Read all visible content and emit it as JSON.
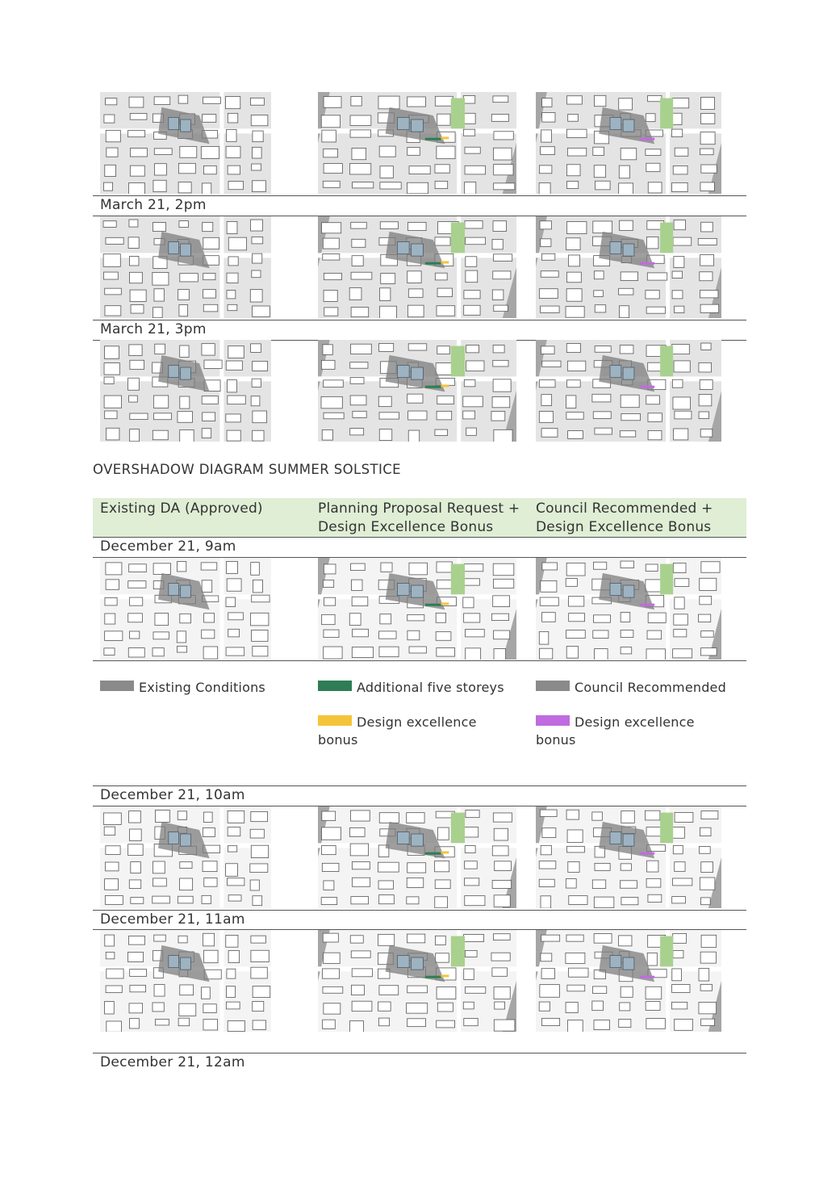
{
  "section_title": "OVERSHADOW DIAGRAM SUMMER SOLSTICE",
  "columns": [
    {
      "header": "Existing DA (Approved)"
    },
    {
      "header": "Planning Proposal Request + Design Excellence Bonus"
    },
    {
      "header": "Council Recommended + Design Excellence Bonus"
    }
  ],
  "time_labels": {
    "mar_2pm": "March 21, 2pm",
    "mar_3pm": "March 21, 3pm",
    "dec_9am": "December 21, 9am",
    "dec_10am": "December 21, 10am",
    "dec_11am": "December 21, 11am",
    "dec_12am": "December 21, 12am"
  },
  "legend": {
    "existing": {
      "label": "Existing Conditions",
      "color": "#8a8a8a"
    },
    "additional": {
      "label": "Additional five storeys",
      "color": "#2e7d55"
    },
    "bonus_yellow": {
      "label": "Design excellence bonus",
      "color": "#f5c43a"
    },
    "council": {
      "label": "Council Recommended",
      "color": "#8a8a8a"
    },
    "bonus_purple": {
      "label": "Design excellence bonus",
      "color": "#c06be0"
    }
  },
  "colors": {
    "header_band": "#dfeed5",
    "park_green": "#a9d18e",
    "shadow": "#7d7d7d",
    "building_blue": "#9eb3c2"
  }
}
